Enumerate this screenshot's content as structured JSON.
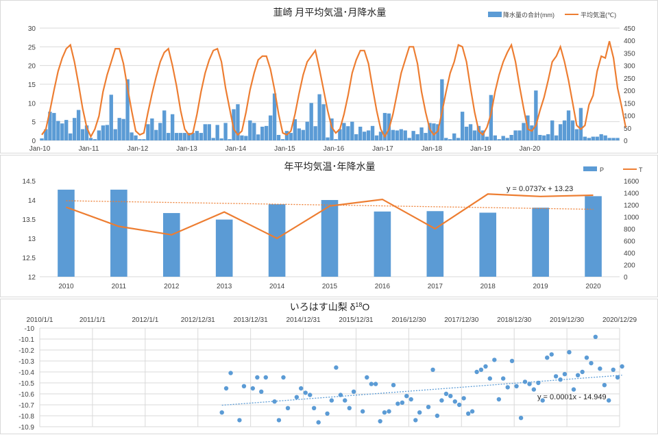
{
  "colors": {
    "bar": "#5b9bd5",
    "line": "#ed7d31",
    "grid": "#d9d9d9",
    "scatter": "#5b9bd5"
  },
  "chart_data": [
    {
      "type": "bar",
      "title": "韮崎 月平均気温･月降水量",
      "series": [
        {
          "name": "降水量の合計(mm)",
          "axis": "right",
          "kind": "bar",
          "values": [
            8,
            45,
            115,
            110,
            78,
            68,
            82,
            28,
            90,
            122,
            45,
            60,
            10,
            5,
            40,
            60,
            62,
            183,
            45,
            90,
            86,
            245,
            32,
            20,
            5,
            5,
            65,
            88,
            42,
            70,
            120,
            30,
            105,
            30,
            30,
            30,
            30,
            30,
            38,
            30,
            65,
            65,
            10,
            62,
            8,
            70,
            5,
            125,
            145,
            20,
            18,
            80,
            70,
            24,
            55,
            58,
            100,
            188,
            22,
            5,
            38,
            30,
            85,
            48,
            42,
            75,
            150,
            57,
            185,
            145,
            12,
            88,
            5,
            45,
            70,
            57,
            75,
            25,
            55,
            35,
            40,
            58,
            20,
            35,
            110,
            108,
            42,
            40,
            45,
            40,
            10,
            38,
            25,
            52,
            30,
            70,
            68,
            65,
            245,
            10,
            5,
            28,
            10,
            115,
            55,
            65,
            40,
            58,
            40,
            15,
            182,
            20,
            5,
            18,
            10,
            22,
            40,
            40,
            70,
            100,
            60,
            200,
            22,
            20,
            25,
            80,
            20,
            65,
            80,
            120,
            80,
            45,
            130,
            15,
            10,
            15,
            15,
            25,
            20,
            10,
            10,
            10
          ]
        },
        {
          "name": "平均気温(℃)",
          "axis": "left",
          "kind": "line",
          "values": [
            1.5,
            3,
            8,
            13.5,
            18.5,
            22,
            24.5,
            25.5,
            21,
            15,
            8.5,
            3.5,
            1,
            3,
            6.5,
            13,
            17.5,
            21,
            24.5,
            24.5,
            20.5,
            14,
            8,
            2.5,
            1.5,
            2,
            7.5,
            12.5,
            17,
            21,
            23.5,
            24.5,
            20,
            14.5,
            8,
            3,
            1.5,
            2,
            7,
            13,
            18,
            21.5,
            24,
            24.5,
            21,
            14,
            8.5,
            3,
            1.5,
            2.5,
            7.5,
            13.5,
            18,
            21.5,
            22.5,
            22.5,
            19,
            13.5,
            7,
            2,
            1.5,
            2.5,
            7,
            12.5,
            17.5,
            21,
            22.5,
            24,
            19,
            13.5,
            8,
            3.5,
            2,
            3,
            7,
            12,
            18,
            21.5,
            24,
            24,
            20.5,
            14,
            8,
            3,
            1,
            3,
            7,
            12.5,
            18,
            21.5,
            25,
            25,
            20.5,
            13,
            7.5,
            3,
            1.5,
            2.5,
            7.5,
            13,
            18,
            21,
            25.5,
            25,
            21,
            14,
            7.5,
            2.5,
            1.5,
            3.5,
            7,
            13,
            17.5,
            21,
            23.5,
            25.5,
            21,
            14.5,
            8.5,
            3,
            2.5,
            4,
            8,
            11.5,
            16,
            21,
            22.5,
            25,
            21,
            16,
            10,
            4,
            3,
            4,
            9.5,
            12,
            18.5,
            22.5,
            22,
            26.5,
            22,
            14,
            9,
            3.5
          ]
        }
      ],
      "x_tick_labels": [
        "Jan-10",
        "Jan-11",
        "Jan-12",
        "Jan-13",
        "Jan-14",
        "Jan-15",
        "Jan-16",
        "Jan-17",
        "Jan-18",
        "Jan-19",
        "Jan-20"
      ],
      "y_left": {
        "ticks": [
          "0",
          "5",
          "10",
          "15",
          "20",
          "25",
          "30"
        ],
        "min": 0,
        "max": 30
      },
      "y_right": {
        "ticks": [
          "0",
          "50",
          "100",
          "150",
          "200",
          "250",
          "300",
          "350",
          "400",
          "450"
        ],
        "min": 0,
        "max": 450
      }
    },
    {
      "type": "bar",
      "title": "年平均気温･年降水量",
      "categories": [
        "2010",
        "2011",
        "2012",
        "2013",
        "2014",
        "2015",
        "2016",
        "2017",
        "2018",
        "2019",
        "2020"
      ],
      "series": [
        {
          "name": "P",
          "axis": "left",
          "kind": "bar",
          "values": [
            14.27,
            14.27,
            13.66,
            13.49,
            13.89,
            14.0,
            13.7,
            13.71,
            13.67,
            13.8,
            14.1
          ]
        },
        {
          "name": "T",
          "axis": "right",
          "kind": "line",
          "values": [
            1160,
            840,
            700,
            1080,
            640,
            1180,
            1290,
            800,
            1380,
            1340,
            1360
          ]
        }
      ],
      "trendline_label": "y = 0.0737x + 13.23",
      "y_left": {
        "ticks": [
          "12",
          "12.5",
          "13",
          "13.5",
          "14",
          "14.5"
        ],
        "min": 12,
        "max": 14.5
      },
      "y_right": {
        "ticks": [
          "0",
          "200",
          "400",
          "600",
          "800",
          "1000",
          "1200",
          "1400",
          "1600"
        ],
        "min": 0,
        "max": 1600
      }
    },
    {
      "type": "scatter",
      "title": "いろはす山梨 δ",
      "title_sup": "18",
      "title_suffix": "O",
      "x_tick_labels": [
        "2010/1/1",
        "2011/1/1",
        "2012/1/1",
        "2012/12/31",
        "2013/12/31",
        "2014/12/31",
        "2015/12/31",
        "2016/12/30",
        "2017/12/30",
        "2018/12/30",
        "2019/12/30",
        "2020/12/29"
      ],
      "y_ticks": [
        "-10",
        "-10.1",
        "-10.2",
        "-10.3",
        "-10.4",
        "-10.5",
        "-10.6",
        "-10.7",
        "-10.8",
        "-10.9"
      ],
      "y_range": [
        -10.9,
        -10.0
      ],
      "trendline_label": "y = 0.0001x - 14.949",
      "points": [
        [
          "2013-06",
          -10.77
        ],
        [
          "2013-07",
          -10.55
        ],
        [
          "2013-08",
          -10.41
        ],
        [
          "2013-10",
          -10.84
        ],
        [
          "2013-11",
          -10.53
        ],
        [
          "2014-01",
          -10.55
        ],
        [
          "2014-02",
          -10.45
        ],
        [
          "2014-03",
          -10.58
        ],
        [
          "2014-04",
          -10.45
        ],
        [
          "2014-06",
          -10.67
        ],
        [
          "2014-07",
          -10.84
        ],
        [
          "2014-08",
          -10.45
        ],
        [
          "2014-09",
          -10.73
        ],
        [
          "2014-11",
          -10.63
        ],
        [
          "2014-12",
          -10.55
        ],
        [
          "2015-01",
          -10.59
        ],
        [
          "2015-02",
          -10.61
        ],
        [
          "2015-03",
          -10.73
        ],
        [
          "2015-04",
          -10.86
        ],
        [
          "2015-06",
          -10.78
        ],
        [
          "2015-07",
          -10.66
        ],
        [
          "2015-08",
          -10.36
        ],
        [
          "2015-09",
          -10.61
        ],
        [
          "2015-10",
          -10.66
        ],
        [
          "2015-11",
          -10.73
        ],
        [
          "2015-12",
          -10.58
        ],
        [
          "2016-02",
          -10.76
        ],
        [
          "2016-03",
          -10.45
        ],
        [
          "2016-04",
          -10.51
        ],
        [
          "2016-05",
          -10.51
        ],
        [
          "2016-06",
          -10.85
        ],
        [
          "2016-07",
          -10.77
        ],
        [
          "2016-08",
          -10.76
        ],
        [
          "2016-09",
          -10.52
        ],
        [
          "2016-10",
          -10.69
        ],
        [
          "2016-11",
          -10.68
        ],
        [
          "2016-12",
          -10.62
        ],
        [
          "2017-01",
          -10.65
        ],
        [
          "2017-02",
          -10.84
        ],
        [
          "2017-03",
          -10.77
        ],
        [
          "2017-05",
          -10.72
        ],
        [
          "2017-06",
          -10.38
        ],
        [
          "2017-07",
          -10.8
        ],
        [
          "2017-08",
          -10.66
        ],
        [
          "2017-09",
          -10.6
        ],
        [
          "2017-10",
          -10.62
        ],
        [
          "2017-11",
          -10.67
        ],
        [
          "2017-12",
          -10.7
        ],
        [
          "2018-01",
          -10.64
        ],
        [
          "2018-02",
          -10.78
        ],
        [
          "2018-03",
          -10.76
        ],
        [
          "2018-04",
          -10.4
        ],
        [
          "2018-05",
          -10.38
        ],
        [
          "2018-06",
          -10.35
        ],
        [
          "2018-07",
          -10.46
        ],
        [
          "2018-08",
          -10.29
        ],
        [
          "2018-09",
          -10.65
        ],
        [
          "2018-10",
          -10.46
        ],
        [
          "2018-11",
          -10.54
        ],
        [
          "2018-12",
          -10.3
        ],
        [
          "2019-01",
          -10.53
        ],
        [
          "2019-02",
          -10.82
        ],
        [
          "2019-03",
          -10.49
        ],
        [
          "2019-04",
          -10.51
        ],
        [
          "2019-05",
          -10.56
        ],
        [
          "2019-06",
          -10.5
        ],
        [
          "2019-07",
          -10.66
        ],
        [
          "2019-08",
          -10.27
        ],
        [
          "2019-09",
          -10.24
        ],
        [
          "2019-10",
          -10.44
        ],
        [
          "2019-11",
          -10.47
        ],
        [
          "2019-12",
          -10.42
        ],
        [
          "2020-01",
          -10.22
        ],
        [
          "2020-02",
          -10.56
        ],
        [
          "2020-03",
          -10.43
        ],
        [
          "2020-04",
          -10.4
        ],
        [
          "2020-05",
          -10.27
        ],
        [
          "2020-06",
          -10.32
        ],
        [
          "2020-07",
          -10.08
        ],
        [
          "2020-08",
          -10.37
        ],
        [
          "2020-09",
          -10.52
        ],
        [
          "2020-10",
          -10.66
        ],
        [
          "2020-11",
          -10.38
        ],
        [
          "2020-12",
          -10.45
        ],
        [
          "2021-01",
          -10.35
        ]
      ]
    }
  ]
}
